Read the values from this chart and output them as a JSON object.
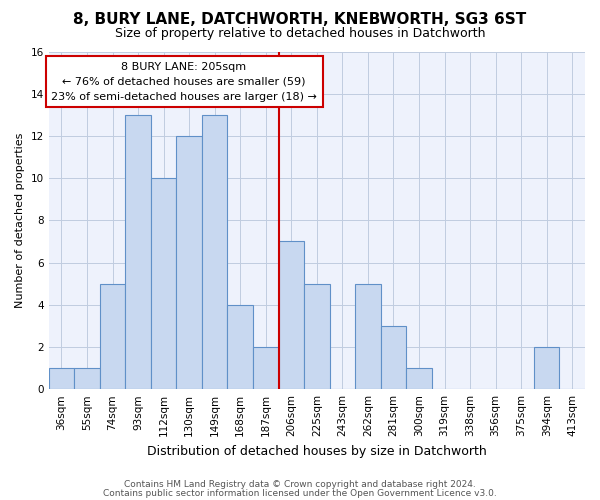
{
  "title1": "8, BURY LANE, DATCHWORTH, KNEBWORTH, SG3 6ST",
  "title2": "Size of property relative to detached houses in Datchworth",
  "xlabel": "Distribution of detached houses by size in Datchworth",
  "ylabel": "Number of detached properties",
  "categories": [
    "36sqm",
    "55sqm",
    "74sqm",
    "93sqm",
    "112sqm",
    "130sqm",
    "149sqm",
    "168sqm",
    "187sqm",
    "206sqm",
    "225sqm",
    "243sqm",
    "262sqm",
    "281sqm",
    "300sqm",
    "319sqm",
    "338sqm",
    "356sqm",
    "375sqm",
    "394sqm",
    "413sqm"
  ],
  "values": [
    1,
    1,
    5,
    13,
    10,
    12,
    13,
    4,
    2,
    7,
    5,
    0,
    5,
    3,
    1,
    0,
    0,
    0,
    0,
    2,
    0
  ],
  "bar_color": "#c8d8f0",
  "bar_edge_color": "#6090c8",
  "vline_index": 9,
  "annotation_text_line1": "8 BURY LANE: 205sqm",
  "annotation_text_line2": "← 76% of detached houses are smaller (59)",
  "annotation_text_line3": "23% of semi-detached houses are larger (18) →",
  "annotation_box_facecolor": "#ffffff",
  "annotation_box_edgecolor": "#cc0000",
  "vline_color": "#cc0000",
  "ylim": [
    0,
    16
  ],
  "yticks": [
    0,
    2,
    4,
    6,
    8,
    10,
    12,
    14,
    16
  ],
  "footer1": "Contains HM Land Registry data © Crown copyright and database right 2024.",
  "footer2": "Contains public sector information licensed under the Open Government Licence v3.0.",
  "bg_color": "#eef2fc",
  "grid_color": "#c0cce0",
  "title1_fontsize": 11,
  "title2_fontsize": 9,
  "ylabel_fontsize": 8,
  "xlabel_fontsize": 9,
  "tick_fontsize": 7.5,
  "footer_fontsize": 6.5
}
